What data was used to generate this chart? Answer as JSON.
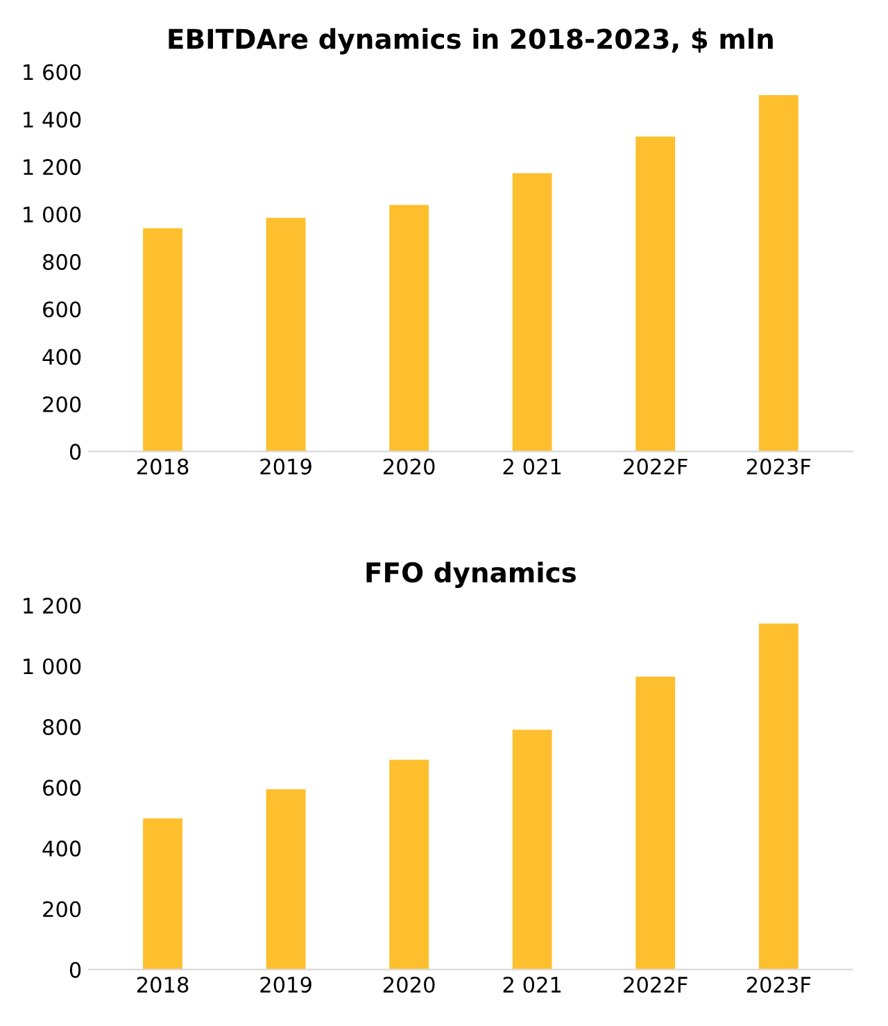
{
  "chart_data": [
    {
      "type": "bar",
      "title": "EBITDAre dynamics in 2018-2023, $ mln",
      "categories": [
        "2018",
        "2019",
        "2020",
        "2 021",
        "2022F",
        "2023F"
      ],
      "values": [
        941,
        985,
        1039,
        1173,
        1327,
        1502
      ],
      "color": "#fdbf2d",
      "ylim": [
        0,
        1600
      ],
      "yticks": [
        0,
        200,
        400,
        600,
        800,
        {
          "value": 1000,
          "label": "1 000"
        },
        {
          "value": 1200,
          "label": "1 200"
        },
        {
          "value": 1400,
          "label": "1 400"
        },
        {
          "value": 1600,
          "label": "1 600"
        }
      ],
      "grid": false
    },
    {
      "type": "bar",
      "title": "FFO dynamics",
      "categories": [
        "2018",
        "2019",
        "2020",
        "2 021",
        "2022F",
        "2023F"
      ],
      "values": [
        498,
        594,
        691,
        790,
        965,
        1140
      ],
      "color": "#fdbf2d",
      "ylim": [
        0,
        1200
      ],
      "yticks": [
        0,
        200,
        400,
        600,
        800,
        {
          "value": 1000,
          "label": "1 000"
        },
        {
          "value": 1200,
          "label": "1 200"
        }
      ],
      "grid": false
    }
  ]
}
